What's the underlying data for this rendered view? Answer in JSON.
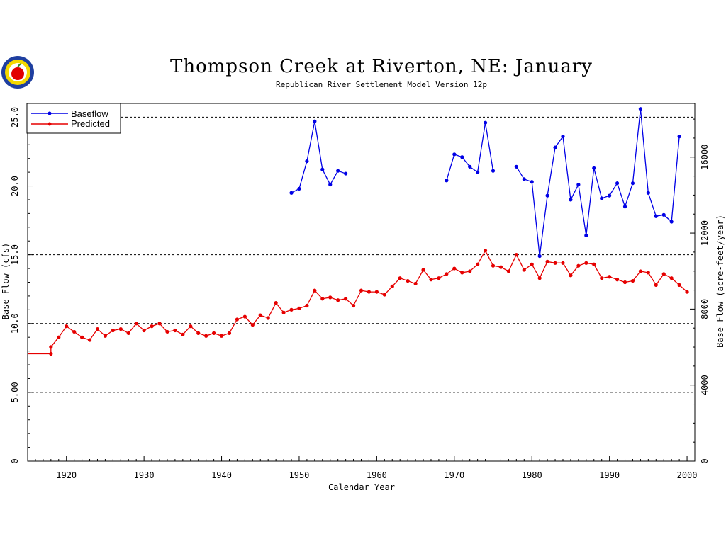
{
  "chart_data": {
    "type": "line",
    "title": "Thompson Creek at Riverton, NE: January",
    "subtitle": "Republican River Settlement Model Version 12p",
    "xlabel": "Calendar Year",
    "ylabel": "Base Flow  (cfs)",
    "ylabel_right": "Base Flow  (acre-feet/year)",
    "xlim": [
      1915,
      2001
    ],
    "ylim": [
      0,
      26
    ],
    "x_ticks": [
      1920,
      1930,
      1940,
      1950,
      1960,
      1970,
      1980,
      1990,
      2000
    ],
    "y_ticks": [
      0,
      5,
      10,
      15,
      20,
      25
    ],
    "y_tick_labels": [
      "0",
      "5.00",
      "10.0",
      "15.0",
      "20.0",
      "25.0"
    ],
    "right_ticks": [
      0,
      4000,
      8000,
      12000,
      16000
    ],
    "right_scale_cfs_to_afy": 724,
    "grid": "horizontal-dashed",
    "legend_position": "top-left",
    "series": [
      {
        "name": "Baseflow",
        "color": "#0000e6",
        "points": [
          [
            1949,
            19.5
          ],
          [
            1950,
            19.8
          ],
          [
            1951,
            21.8
          ],
          [
            1952,
            24.7
          ],
          [
            1953,
            21.2
          ],
          [
            1954,
            20.1
          ],
          [
            1955,
            21.1
          ],
          [
            1956,
            20.9
          ],
          null,
          [
            1969,
            20.4
          ],
          [
            1970,
            22.3
          ],
          [
            1971,
            22.1
          ],
          [
            1972,
            21.4
          ],
          [
            1973,
            21.0
          ],
          [
            1974,
            24.6
          ],
          [
            1975,
            21.1
          ],
          null,
          [
            1978,
            21.4
          ],
          [
            1979,
            20.5
          ],
          [
            1980,
            20.3
          ],
          [
            1981,
            14.9
          ],
          [
            1982,
            19.3
          ],
          [
            1983,
            22.8
          ],
          [
            1984,
            23.6
          ],
          [
            1985,
            19.0
          ],
          [
            1986,
            20.1
          ],
          [
            1987,
            16.4
          ],
          [
            1988,
            21.3
          ],
          [
            1989,
            19.1
          ],
          [
            1990,
            19.3
          ],
          [
            1991,
            20.2
          ],
          [
            1992,
            18.5
          ],
          [
            1993,
            20.2
          ],
          [
            1994,
            25.6
          ],
          [
            1995,
            19.5
          ],
          [
            1996,
            17.8
          ],
          [
            1997,
            17.9
          ],
          [
            1998,
            17.4
          ],
          [
            1999,
            23.6
          ]
        ]
      },
      {
        "name": "Predicted",
        "color": "#e60000",
        "line_only": [
          [
            1915,
            7.8
          ],
          [
            1918,
            7.8
          ]
        ],
        "points": [
          [
            1918,
            7.8
          ],
          [
            1918,
            8.3
          ],
          [
            1919,
            9.0
          ],
          [
            1920,
            9.8
          ],
          [
            1921,
            9.4
          ],
          [
            1922,
            9.0
          ],
          [
            1923,
            8.8
          ],
          [
            1924,
            9.6
          ],
          [
            1925,
            9.1
          ],
          [
            1926,
            9.5
          ],
          [
            1927,
            9.6
          ],
          [
            1928,
            9.3
          ],
          [
            1929,
            10.0
          ],
          [
            1930,
            9.5
          ],
          [
            1931,
            9.8
          ],
          [
            1932,
            10.0
          ],
          [
            1933,
            9.4
          ],
          [
            1934,
            9.5
          ],
          [
            1935,
            9.2
          ],
          [
            1936,
            9.8
          ],
          [
            1937,
            9.3
          ],
          [
            1938,
            9.1
          ],
          [
            1939,
            9.3
          ],
          [
            1940,
            9.1
          ],
          [
            1941,
            9.3
          ],
          [
            1942,
            10.3
          ],
          [
            1943,
            10.5
          ],
          [
            1944,
            9.9
          ],
          [
            1945,
            10.6
          ],
          [
            1946,
            10.4
          ],
          [
            1947,
            11.5
          ],
          [
            1948,
            10.8
          ],
          [
            1949,
            11.0
          ],
          [
            1950,
            11.1
          ],
          [
            1951,
            11.3
          ],
          [
            1952,
            12.4
          ],
          [
            1953,
            11.8
          ],
          [
            1954,
            11.9
          ],
          [
            1955,
            11.7
          ],
          [
            1956,
            11.8
          ],
          [
            1957,
            11.3
          ],
          [
            1958,
            12.4
          ],
          [
            1959,
            12.3
          ],
          [
            1960,
            12.3
          ],
          [
            1961,
            12.1
          ],
          [
            1962,
            12.7
          ],
          [
            1963,
            13.3
          ],
          [
            1964,
            13.1
          ],
          [
            1965,
            12.9
          ],
          [
            1966,
            13.9
          ],
          [
            1967,
            13.2
          ],
          [
            1968,
            13.3
          ],
          [
            1969,
            13.6
          ],
          [
            1970,
            14.0
          ],
          [
            1971,
            13.7
          ],
          [
            1972,
            13.8
          ],
          [
            1973,
            14.3
          ],
          [
            1974,
            15.3
          ],
          [
            1975,
            14.2
          ],
          [
            1976,
            14.1
          ],
          [
            1977,
            13.8
          ],
          [
            1978,
            15.0
          ],
          [
            1979,
            13.9
          ],
          [
            1980,
            14.3
          ],
          [
            1981,
            13.3
          ],
          [
            1982,
            14.5
          ],
          [
            1983,
            14.4
          ],
          [
            1984,
            14.4
          ],
          [
            1985,
            13.5
          ],
          [
            1986,
            14.2
          ],
          [
            1987,
            14.4
          ],
          [
            1988,
            14.3
          ],
          [
            1989,
            13.3
          ],
          [
            1990,
            13.4
          ],
          [
            1991,
            13.2
          ],
          [
            1992,
            13.0
          ],
          [
            1993,
            13.1
          ],
          [
            1994,
            13.8
          ],
          [
            1995,
            13.7
          ],
          [
            1996,
            12.8
          ],
          [
            1997,
            13.6
          ],
          [
            1998,
            13.3
          ],
          [
            1999,
            12.8
          ],
          [
            2000,
            12.3
          ]
        ]
      }
    ]
  }
}
